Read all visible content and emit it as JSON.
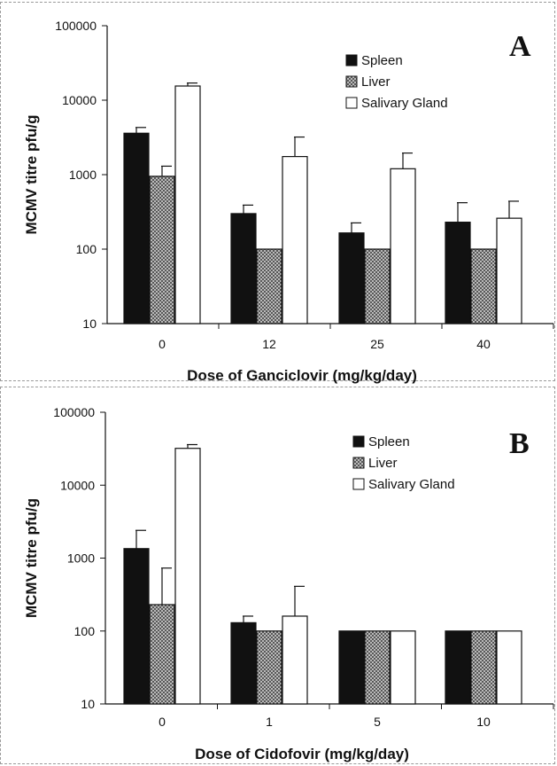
{
  "colors": {
    "spleen": "#111111",
    "liver_pattern": "crosshatch",
    "salivary": "#ffffff",
    "axis": "#111111"
  },
  "chart_data": [
    {
      "type": "bar",
      "panel_label": "A",
      "xlabel": "Dose of Ganciclovir (mg/kg/day)",
      "ylabel": "MCMV titre pfu/g",
      "y_scale": "log",
      "ylim": [
        10,
        100000
      ],
      "y_ticks": [
        "10",
        "100",
        "1000",
        "10000",
        "100000"
      ],
      "categories": [
        "0",
        "12",
        "25",
        "40"
      ],
      "legend_position": "top-right",
      "series": [
        {
          "name": "Spleen",
          "values": [
            3600,
            300,
            165,
            230
          ],
          "error": [
            4300,
            390,
            225,
            420
          ]
        },
        {
          "name": "Liver",
          "values": [
            950,
            100,
            100,
            100
          ],
          "error": [
            1300,
            null,
            null,
            null
          ]
        },
        {
          "name": "Salivary Gland",
          "values": [
            15500,
            1750,
            1200,
            260
          ],
          "error": [
            17000,
            3200,
            1950,
            440
          ]
        }
      ]
    },
    {
      "type": "bar",
      "panel_label": "B",
      "xlabel": "Dose of Cidofovir (mg/kg/day)",
      "ylabel": "MCMV titre pfu/g",
      "y_scale": "log",
      "ylim": [
        10,
        100000
      ],
      "y_ticks": [
        "10",
        "100",
        "1000",
        "10000",
        "100000"
      ],
      "categories": [
        "0",
        "1",
        "5",
        "10"
      ],
      "legend_position": "top-right",
      "series": [
        {
          "name": "Spleen",
          "values": [
            1350,
            130,
            100,
            100
          ],
          "error": [
            2400,
            160,
            null,
            null
          ]
        },
        {
          "name": "Liver",
          "values": [
            230,
            100,
            100,
            100
          ],
          "error": [
            730,
            null,
            null,
            null
          ]
        },
        {
          "name": "Salivary Gland",
          "values": [
            32000,
            160,
            100,
            100
          ],
          "error": [
            36000,
            410,
            null,
            null
          ]
        }
      ]
    }
  ]
}
